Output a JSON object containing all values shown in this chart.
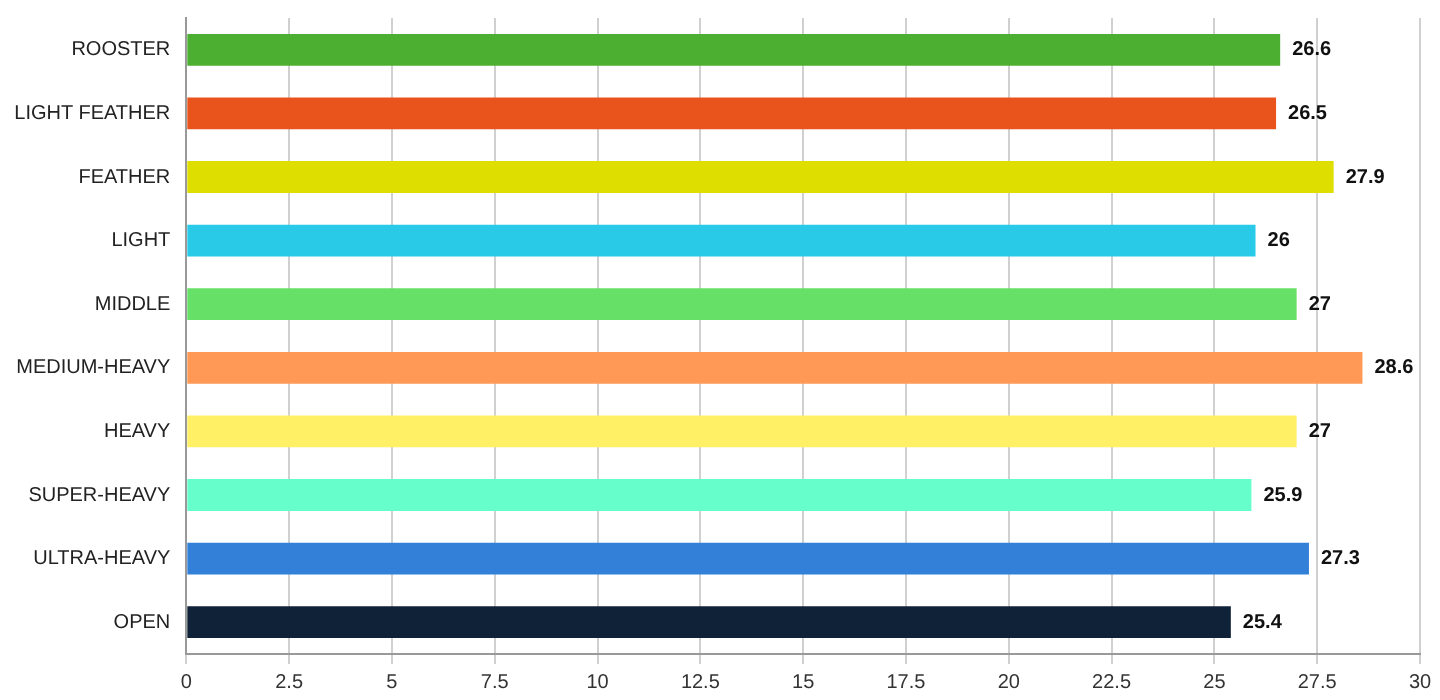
{
  "chart_data": {
    "type": "bar",
    "orientation": "horizontal",
    "categories": [
      "ROOSTER",
      "LIGHT FEATHER",
      "FEATHER",
      "LIGHT",
      "MIDDLE",
      "MEDIUM-HEAVY",
      "HEAVY",
      "SUPER-HEAVY",
      "ULTRA-HEAVY",
      "OPEN"
    ],
    "values": [
      26.6,
      26.5,
      27.9,
      26,
      27,
      28.6,
      27,
      25.9,
      27.3,
      25.4
    ],
    "colors": [
      "#4caf32",
      "#e8541c",
      "#dede00",
      "#29c9e8",
      "#66e066",
      "#ff9955",
      "#fff066",
      "#66ffcc",
      "#3380d9",
      "#0f2238"
    ],
    "xlim": [
      0,
      30
    ],
    "xticks": [
      0,
      2.5,
      5,
      7.5,
      10,
      12.5,
      15,
      17.5,
      20,
      22.5,
      25,
      27.5,
      30
    ],
    "grid": "x",
    "legend": false,
    "data_labels": true
  }
}
